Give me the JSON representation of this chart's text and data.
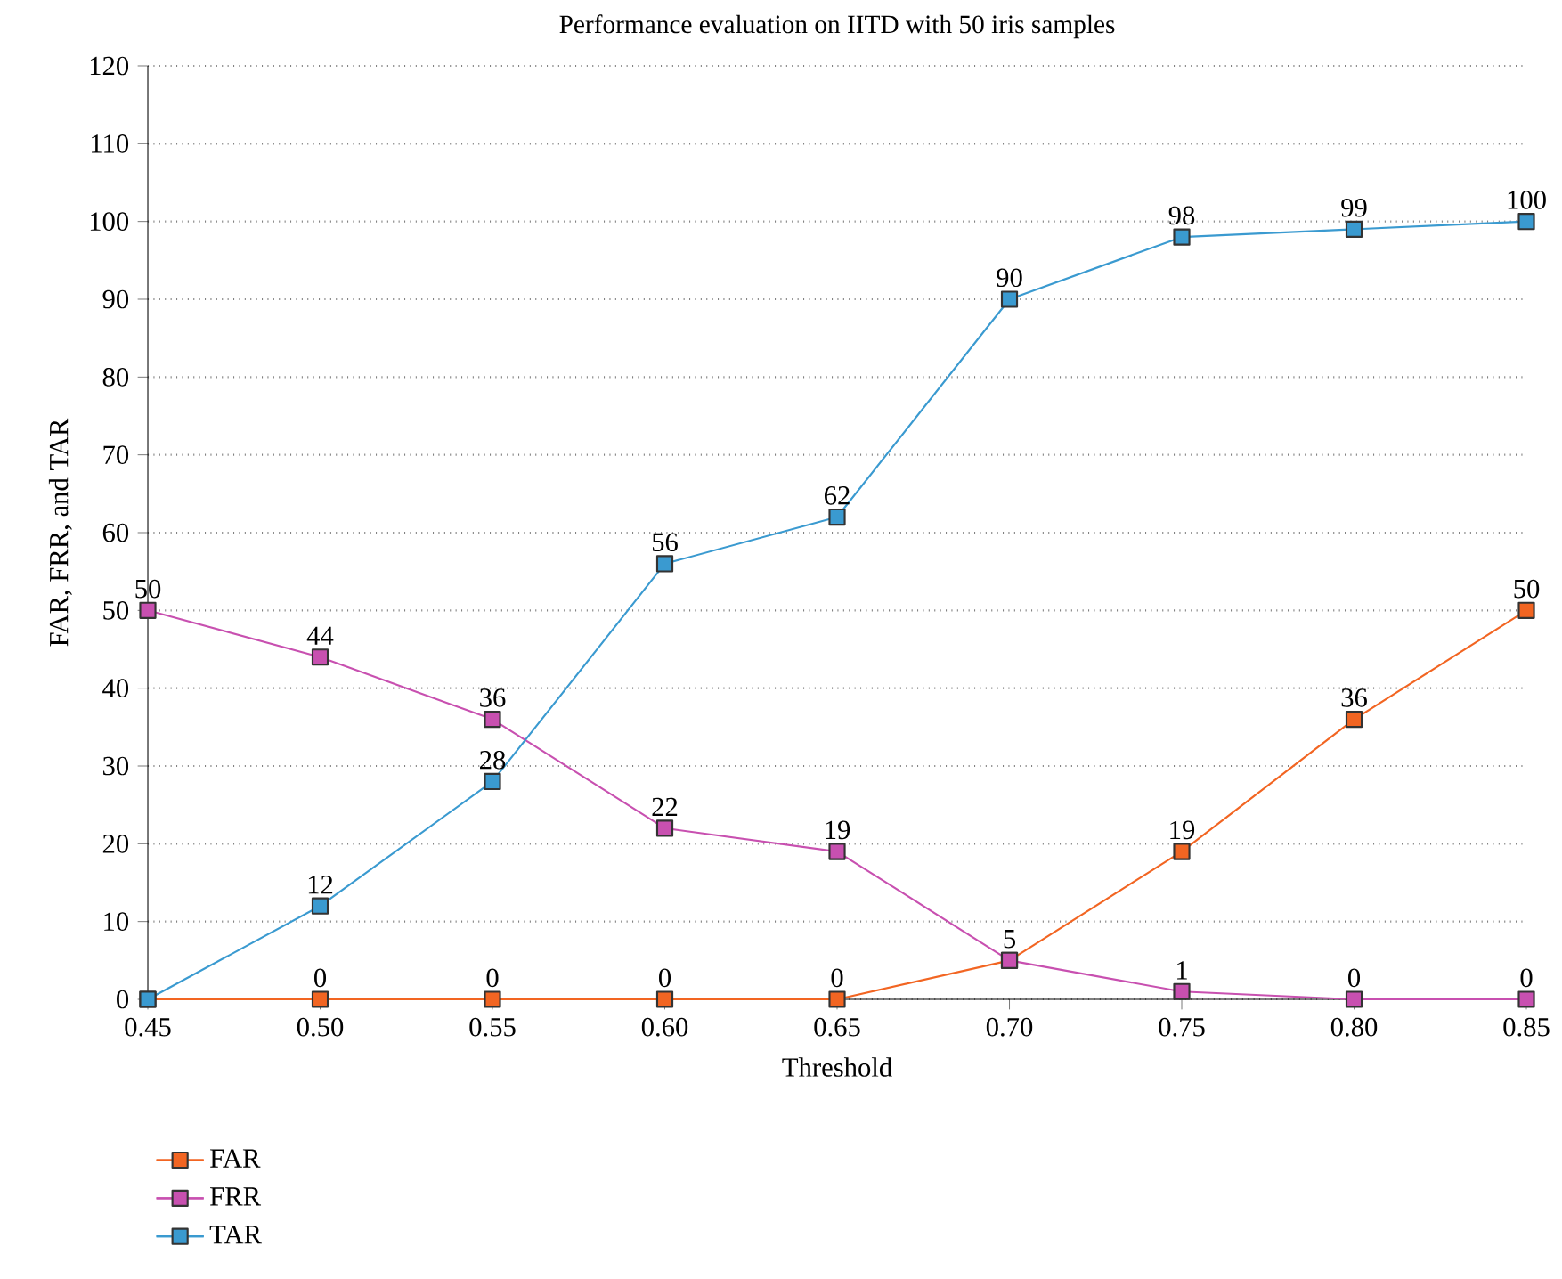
{
  "chart_data": {
    "type": "line",
    "title": "Performance evaluation on IITD with 50 iris samples",
    "xlabel": "Threshold",
    "ylabel": "FAR, FRR, and TAR",
    "x": [
      0.45,
      0.5,
      0.55,
      0.6,
      0.65,
      0.7,
      0.75,
      0.8,
      0.85
    ],
    "series": [
      {
        "name": "FAR",
        "color": "#f26522",
        "values": [
          0,
          0,
          0,
          0,
          0,
          5,
          19,
          36,
          50
        ],
        "value_labels": [
          null,
          "0",
          "0",
          "0",
          "0",
          "5",
          "19",
          "36",
          "50"
        ]
      },
      {
        "name": "FRR",
        "color": "#c850b0",
        "values": [
          50,
          44,
          36,
          22,
          19,
          5,
          1,
          0,
          0
        ],
        "value_labels": [
          "50",
          "44",
          "36",
          "22",
          "19",
          null,
          "1",
          "0",
          "0"
        ]
      },
      {
        "name": "TAR",
        "color": "#3a9ad0",
        "values": [
          0,
          12,
          28,
          56,
          62,
          90,
          98,
          99,
          100
        ],
        "value_labels": [
          null,
          "12",
          "28",
          "56",
          "62",
          "90",
          "98",
          "99",
          "100"
        ]
      }
    ],
    "xlim": [
      0.45,
      0.85
    ],
    "xticks": [
      {
        "value": 0.45,
        "label": "0.45"
      },
      {
        "value": 0.5,
        "label": "0.50"
      },
      {
        "value": 0.55,
        "label": "0.55"
      },
      {
        "value": 0.6,
        "label": "0.60"
      },
      {
        "value": 0.65,
        "label": "0.65"
      },
      {
        "value": 0.7,
        "label": "0.70"
      },
      {
        "value": 0.75,
        "label": "0.75"
      },
      {
        "value": 0.8,
        "label": "0.80"
      },
      {
        "value": 0.85,
        "label": "0.85"
      }
    ],
    "ylim": [
      0,
      120
    ],
    "yticks": [
      0,
      10,
      20,
      30,
      40,
      50,
      60,
      70,
      80,
      90,
      100,
      110,
      120
    ],
    "grid": "y",
    "legend": "bottom left",
    "marker": "square",
    "line_style": "solid"
  }
}
